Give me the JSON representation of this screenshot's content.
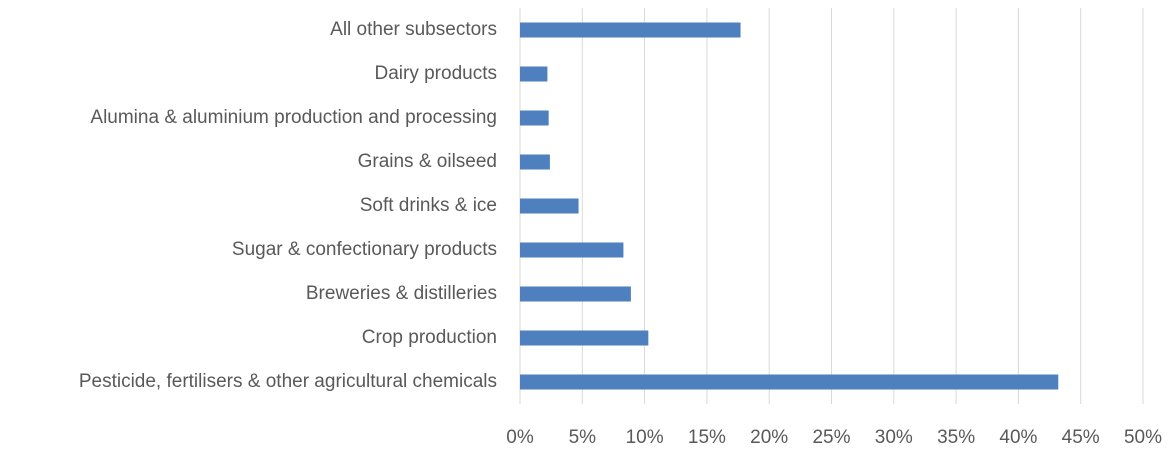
{
  "chart_data": {
    "type": "bar",
    "orientation": "horizontal",
    "categories": [
      "All other subsectors",
      "Dairy products",
      "Alumina & aluminium production and processing",
      "Grains & oilseed",
      "Soft drinks & ice",
      "Sugar & confectionary products",
      "Breweries & distilleries",
      "Crop production",
      "Pesticide, fertilisers & other agricultural chemicals"
    ],
    "values": [
      17.7,
      2.2,
      2.3,
      2.4,
      4.7,
      8.3,
      8.9,
      10.3,
      43.2
    ],
    "color": "#4e7fbf",
    "xlim": [
      0,
      50
    ],
    "xticks": [
      {
        "value": 0,
        "label": "0%"
      },
      {
        "value": 5,
        "label": "5%"
      },
      {
        "value": 10,
        "label": "10%"
      },
      {
        "value": 15,
        "label": "15%"
      },
      {
        "value": 20,
        "label": "20%"
      },
      {
        "value": 25,
        "label": "25%"
      },
      {
        "value": 30,
        "label": "30%"
      },
      {
        "value": 35,
        "label": "35%"
      },
      {
        "value": 40,
        "label": "40%"
      },
      {
        "value": 45,
        "label": "45%"
      },
      {
        "value": 50,
        "label": "50%"
      }
    ],
    "grid": true
  }
}
